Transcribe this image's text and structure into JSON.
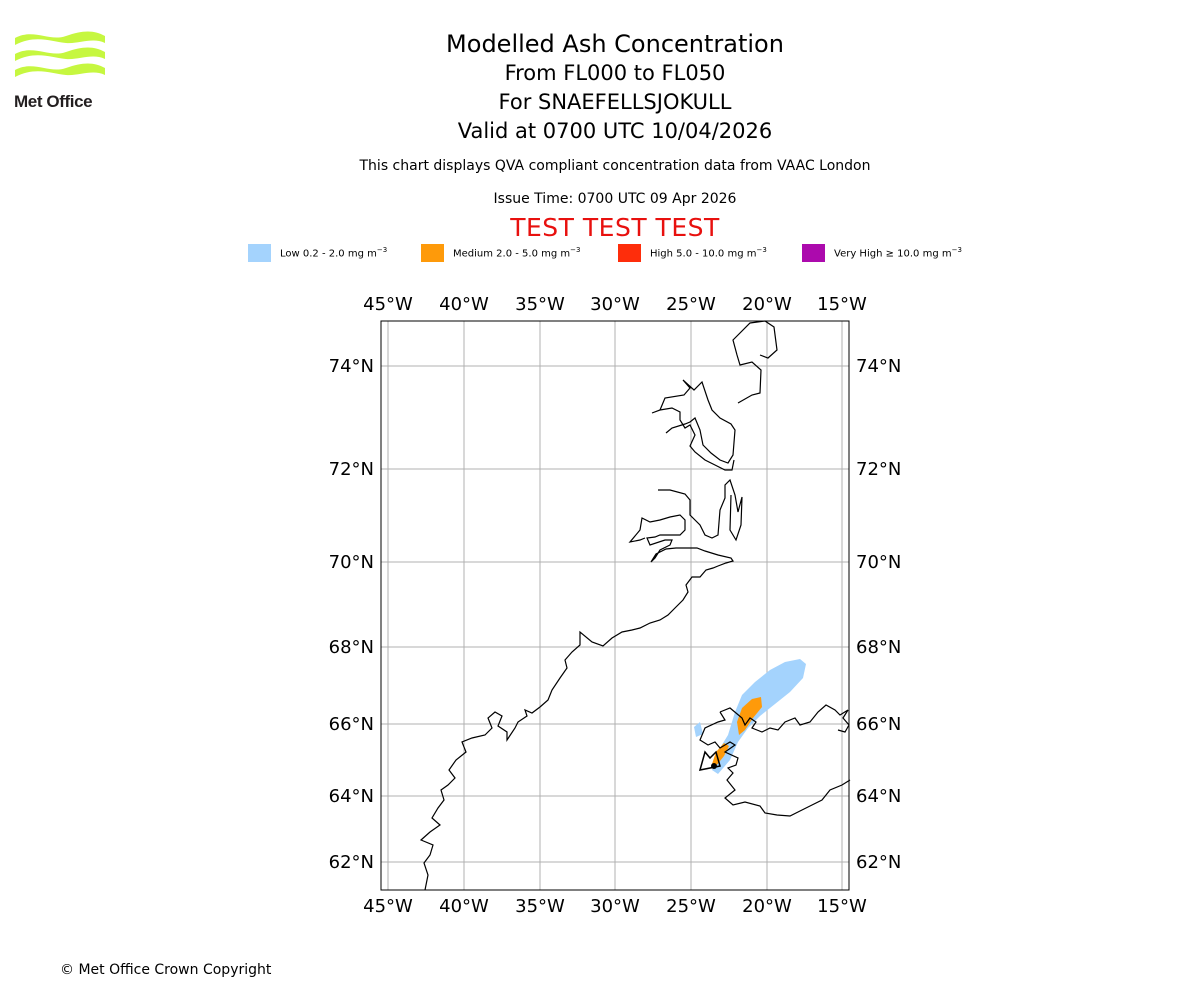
{
  "branding": {
    "logo_text": "Met Office"
  },
  "titles": {
    "main": "Modelled Ash Concentration",
    "levels": "From FL000 to FL050",
    "volcano": "For SNAEFELLSJOKULL",
    "valid": "Valid at 0700 UTC 10/04/2026"
  },
  "notes": {
    "compliance": "This chart displays QVA compliant concentration data from VAAC London",
    "issue_time": "Issue Time: 0700 UTC 09 Apr 2026",
    "test_banner": "TEST TEST TEST"
  },
  "legend": [
    {
      "label": "Low 0.2 - 2.0 mg m",
      "unit_exp": "−3",
      "color": "#a4d3fd"
    },
    {
      "label": "Medium 2.0 - 5.0 mg m",
      "unit_exp": "−3",
      "color": "#fe9a0a"
    },
    {
      "label": "High 5.0 - 10.0 mg m",
      "unit_exp": "−3",
      "color": "#fe2d0b"
    },
    {
      "label": "Very High  ≥  10.0 mg m",
      "unit_exp": "−3",
      "color": "#ac0aad"
    }
  ],
  "map": {
    "lon_ticks": [
      "45°W",
      "40°W",
      "35°W",
      "30°W",
      "25°W",
      "20°W",
      "15°W"
    ],
    "lat_ticks": [
      "74°N",
      "72°N",
      "70°N",
      "68°N",
      "66°N",
      "64°N",
      "62°N"
    ],
    "lon_range": [
      -45.5,
      -14.5
    ],
    "lat_range": [
      61.3,
      75.0
    ],
    "grid": true,
    "coastline_color": "#000000",
    "grid_color": "#b0b0b0"
  },
  "footer": {
    "copyright": "© Met Office Crown Copyright"
  }
}
